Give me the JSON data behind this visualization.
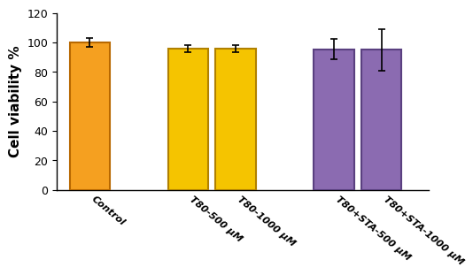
{
  "categories": [
    "Control",
    "T80-500 μM",
    "T80-1000 μM",
    "T80+STA-500 μM",
    "T80+STA-1000 μM"
  ],
  "values": [
    100.0,
    96.0,
    96.0,
    95.5,
    95.0
  ],
  "errors": [
    3.0,
    2.5,
    2.5,
    7.0,
    14.0
  ],
  "bar_colors": [
    "#F5A020",
    "#F5C400",
    "#F5C400",
    "#8B6BB1",
    "#8B6BB1"
  ],
  "bar_edge_colors": [
    "#B86800",
    "#B08000",
    "#B08000",
    "#5A4080",
    "#5A4080"
  ],
  "ylabel": "Cell viability %",
  "ylim": [
    0,
    120
  ],
  "yticks": [
    0,
    20,
    40,
    60,
    80,
    100,
    120
  ],
  "bar_width": 0.55,
  "positions": [
    0.55,
    1.9,
    2.55,
    3.9,
    4.55
  ],
  "xlim": [
    0.1,
    5.2
  ],
  "background_color": "#ffffff",
  "ylabel_fontsize": 11,
  "tick_fontsize": 9,
  "xlabel_rotation": -40,
  "xlabel_ha": "left",
  "xlabel_fontsize": 8,
  "capsize": 3
}
